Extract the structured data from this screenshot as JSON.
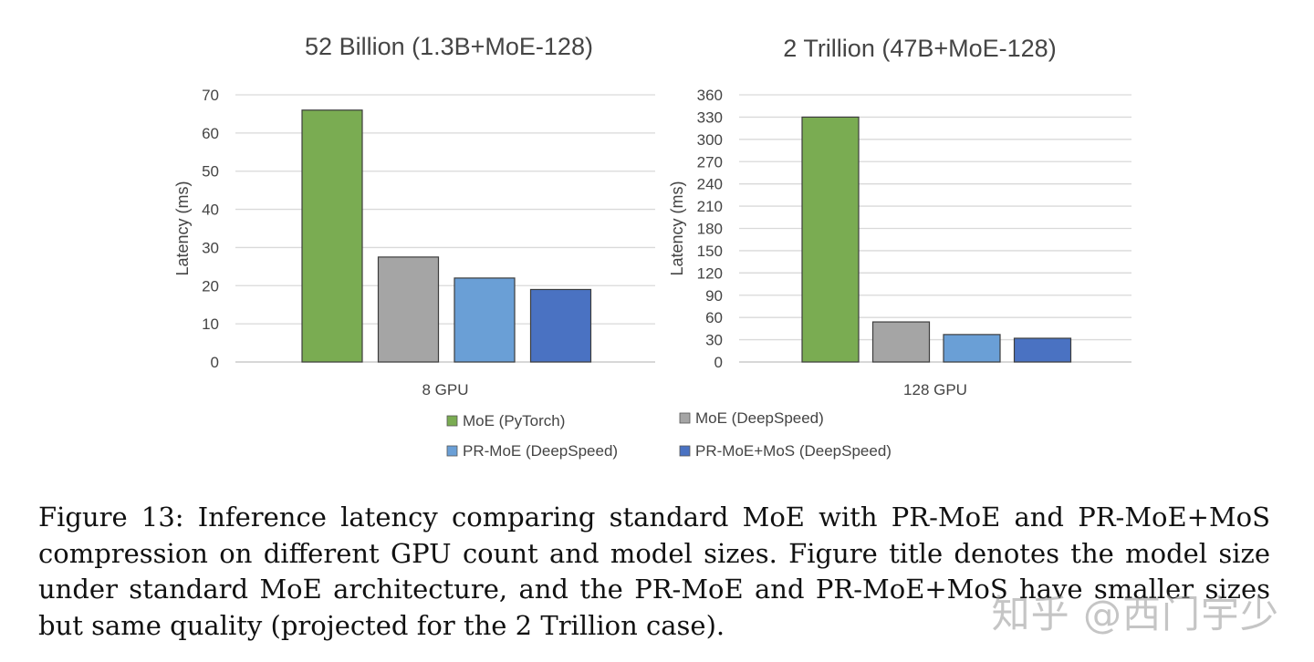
{
  "chart_data": [
    {
      "type": "bar",
      "title": "52 Billion (1.3B+MoE-128)",
      "ylabel": "Latency (ms)",
      "xlabel": "8 GPU",
      "ylim": [
        0,
        70
      ],
      "yticks": [
        0,
        10,
        20,
        30,
        40,
        50,
        60,
        70
      ],
      "grid": true,
      "series": [
        {
          "name": "MoE (PyTorch)",
          "values": [
            66
          ]
        },
        {
          "name": "MoE (DeepSpeed)",
          "values": [
            27.5
          ]
        },
        {
          "name": "PR-MoE (DeepSpeed)",
          "values": [
            22
          ]
        },
        {
          "name": "PR-MoE+MoS (DeepSpeed)",
          "values": [
            19
          ]
        }
      ]
    },
    {
      "type": "bar",
      "title": "2 Trillion (47B+MoE-128)",
      "ylabel": "Latency (ms)",
      "xlabel": "128 GPU",
      "ylim": [
        0,
        360
      ],
      "yticks": [
        0,
        30,
        60,
        90,
        120,
        150,
        180,
        210,
        240,
        270,
        300,
        330,
        360
      ],
      "grid": true,
      "series": [
        {
          "name": "MoE (PyTorch)",
          "values": [
            330
          ]
        },
        {
          "name": "MoE (DeepSpeed)",
          "values": [
            54
          ]
        },
        {
          "name": "PR-MoE (DeepSpeed)",
          "values": [
            37
          ]
        },
        {
          "name": "PR-MoE+MoS (DeepSpeed)",
          "values": [
            32
          ]
        }
      ]
    }
  ],
  "legend": {
    "placement": "bottom",
    "entries": [
      "MoE (PyTorch)",
      "MoE (DeepSpeed)",
      "PR-MoE (DeepSpeed)",
      "PR-MoE+MoS (DeepSpeed)"
    ]
  },
  "colors": {
    "MoE (PyTorch)": "#7aac52",
    "MoE (DeepSpeed)": "#a5a5a5",
    "PR-MoE (DeepSpeed)": "#6a9fd6",
    "PR-MoE+MoS (DeepSpeed)": "#4a72c2",
    "grid": "#d9d9d9",
    "text": "#444444"
  },
  "caption": "Figure 13: Inference latency comparing standard MoE with PR-MoE and PR-MoE+MoS compression on different GPU count and model sizes. Figure title denotes the model size under standard MoE architecture, and the PR-MoE and PR-MoE+MoS have smaller sizes but same quality (projected for the 2 Trillion case).",
  "watermark": "知乎 @西门宇少"
}
